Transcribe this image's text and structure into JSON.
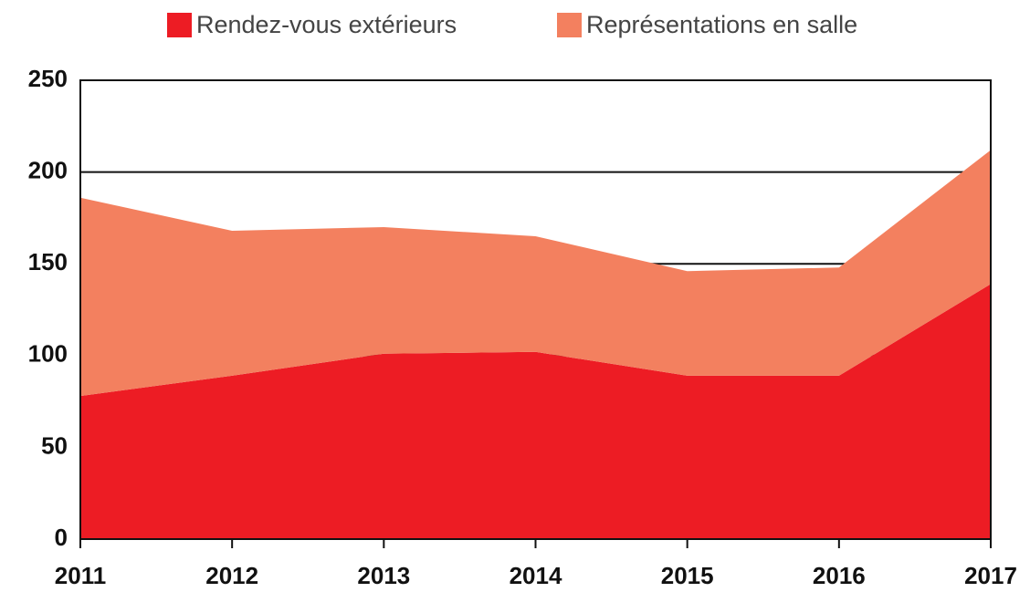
{
  "chart_data": {
    "type": "area",
    "stacked": true,
    "categories": [
      "2011",
      "2012",
      "2013",
      "2014",
      "2015",
      "2016",
      "2017"
    ],
    "series": [
      {
        "name": "Rendez-vous extérieurs",
        "color": "#ed1c24",
        "values": [
          78,
          89,
          101,
          102,
          89,
          89,
          139
        ]
      },
      {
        "name": "Représentations en salle",
        "color": "#f3805f",
        "values": [
          108,
          79,
          69,
          63,
          57,
          59,
          73
        ]
      }
    ],
    "ylim": [
      0,
      250
    ],
    "yticks": [
      0,
      50,
      100,
      150,
      200,
      250
    ],
    "grid": true,
    "legend": "top"
  }
}
